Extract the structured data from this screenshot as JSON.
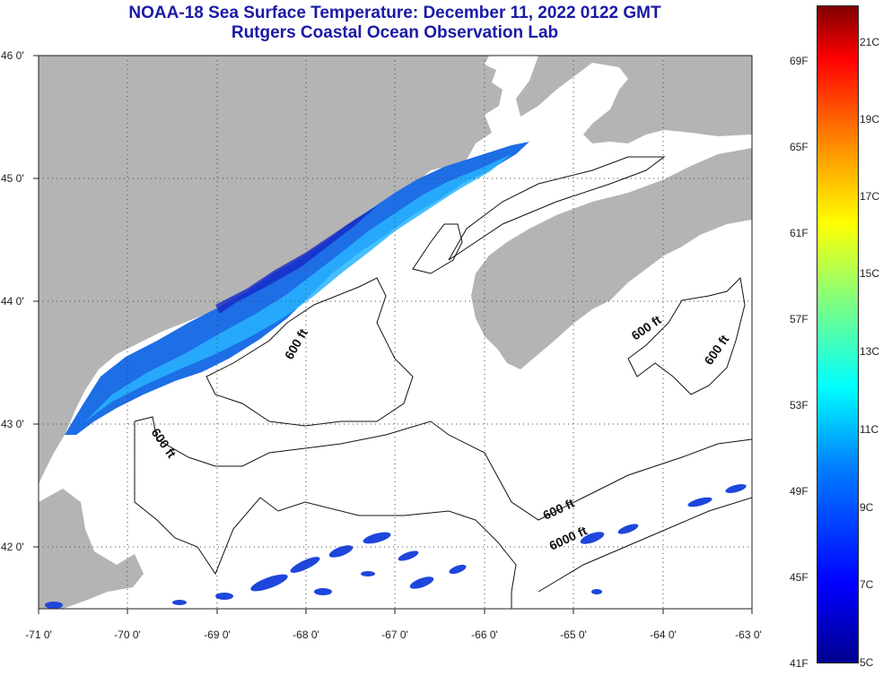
{
  "header": {
    "title": "NOAA-18 Sea Surface Temperature:  December 11, 2022 0122 GMT",
    "subtitle": "Rutgers Coastal Ocean Observation Lab"
  },
  "map": {
    "lon_range": [
      -71,
      -63
    ],
    "lat_range": [
      41.5,
      46
    ],
    "x_ticks": [
      "-71 0'",
      "-70 0'",
      "-69 0'",
      "-68 0'",
      "-67 0'",
      "-66 0'",
      "-65 0'",
      "-64 0'",
      "-63 0'"
    ],
    "y_ticks": [
      "46 0'",
      "45 0'",
      "44 0'",
      "43 0'",
      "42 0'"
    ],
    "contour_labels": [
      "600 ft",
      "600 ft",
      "600 ft",
      "600 ft",
      "600 ft",
      "6000 ft"
    ]
  },
  "colors": {
    "land": "#b4b4b4",
    "water_nodata": "#ffffff",
    "sst_cold": "#1428c8",
    "sst_mid": "#1e78ff",
    "sst_warm": "#28c8ff"
  },
  "colorbar": {
    "fahrenheit": [
      "69F",
      "65F",
      "61F",
      "57F",
      "53F",
      "49F",
      "45F",
      "41F"
    ],
    "celsius": [
      "21C",
      "19C",
      "17C",
      "15C",
      "13C",
      "11C",
      "9C",
      "7C",
      "5C"
    ]
  }
}
